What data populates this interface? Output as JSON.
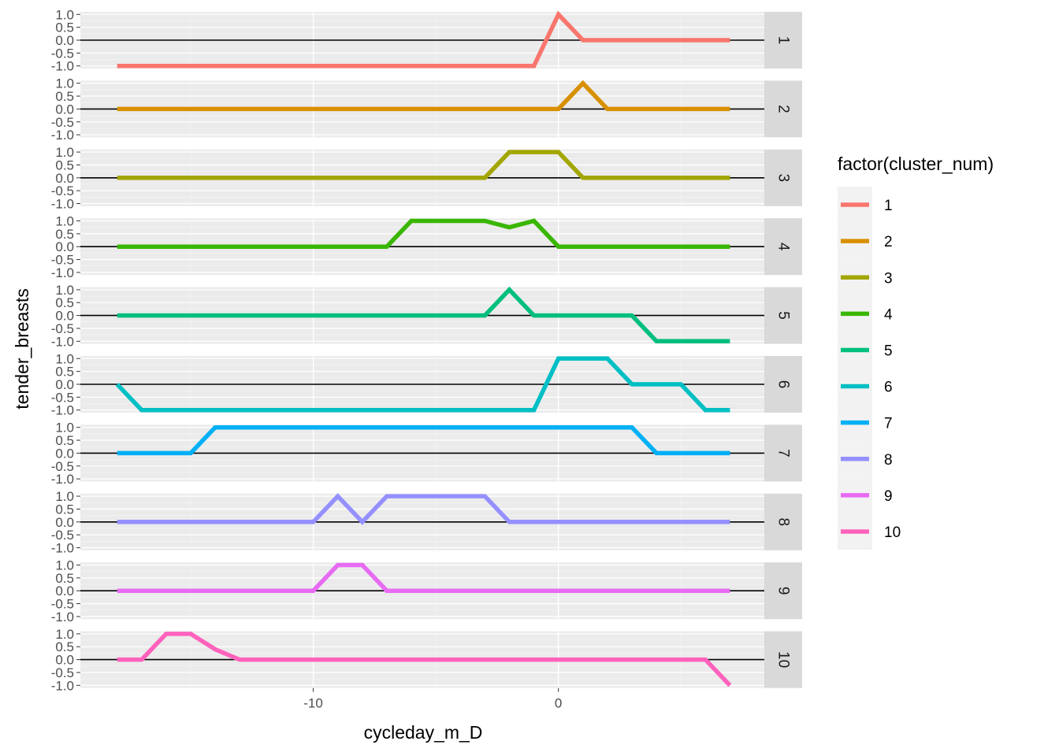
{
  "chart_data": {
    "type": "line",
    "layout": "faceted-rows",
    "xlabel": "cycleday_m_D",
    "ylabel": "tender_breasts",
    "xlim": [
      -19.5,
      8.4
    ],
    "x_ticks": [
      -10,
      0
    ],
    "x_tick_labels": [
      "-10",
      "0"
    ],
    "ylim": [
      -1.1,
      1.1
    ],
    "y_ticks": [
      1.0,
      0.5,
      0.0,
      -0.5,
      -1.0
    ],
    "y_tick_labels": [
      "1.0",
      "0.5",
      "0.0",
      "-0.5",
      "-1.0"
    ],
    "reference_line_y": 0,
    "grid": true,
    "legend": {
      "title": "factor(cluster_num)",
      "position": "right"
    },
    "x": [
      -18,
      -17,
      -16,
      -15,
      -14,
      -13,
      -12,
      -11,
      -10,
      -9,
      -8,
      -7,
      -6,
      -5,
      -4,
      -3,
      -2,
      -1,
      0,
      1,
      2,
      3,
      4,
      5,
      6,
      7
    ],
    "series": [
      {
        "name": "1",
        "color": "#F8766D",
        "values": [
          -1,
          -1,
          -1,
          -1,
          -1,
          -1,
          -1,
          -1,
          -1,
          -1,
          -1,
          -1,
          -1,
          -1,
          -1,
          -1,
          -1,
          -1,
          1,
          0,
          0,
          0,
          0,
          0,
          0,
          0
        ]
      },
      {
        "name": "2",
        "color": "#D89000",
        "values": [
          0,
          0,
          0,
          0,
          0,
          0,
          0,
          0,
          0,
          0,
          0,
          0,
          0,
          0,
          0,
          0,
          0,
          0,
          0,
          1,
          0,
          0,
          0,
          0,
          0,
          0
        ]
      },
      {
        "name": "3",
        "color": "#A3A500",
        "values": [
          0,
          0,
          0,
          0,
          0,
          0,
          0,
          0,
          0,
          0,
          0,
          0,
          0,
          0,
          0,
          0,
          1,
          1,
          1,
          0,
          0,
          0,
          0,
          0,
          0,
          0
        ]
      },
      {
        "name": "4",
        "color": "#39B600",
        "values": [
          0,
          0,
          0,
          0,
          0,
          0,
          0,
          0,
          0,
          0,
          0,
          0,
          1,
          1,
          1,
          1,
          0.75,
          1,
          0,
          0,
          0,
          0,
          0,
          0,
          0,
          0
        ]
      },
      {
        "name": "5",
        "color": "#00BF7D",
        "values": [
          0,
          0,
          0,
          0,
          0,
          0,
          0,
          0,
          0,
          0,
          0,
          0,
          0,
          0,
          0,
          0,
          1,
          0,
          0,
          0,
          0,
          0,
          -1,
          -1,
          -1,
          -1
        ]
      },
      {
        "name": "6",
        "color": "#00BFC4",
        "values": [
          0,
          -1,
          -1,
          -1,
          -1,
          -1,
          -1,
          -1,
          -1,
          -1,
          -1,
          -1,
          -1,
          -1,
          -1,
          -1,
          -1,
          -1,
          1,
          1,
          1,
          0,
          0,
          0,
          -1,
          -1
        ]
      },
      {
        "name": "7",
        "color": "#00B0F6",
        "values": [
          0,
          0,
          0,
          0,
          1,
          1,
          1,
          1,
          1,
          1,
          1,
          1,
          1,
          1,
          1,
          1,
          1,
          1,
          1,
          1,
          1,
          1,
          0,
          0,
          0,
          0
        ]
      },
      {
        "name": "8",
        "color": "#9590FF",
        "values": [
          0,
          0,
          0,
          0,
          0,
          0,
          0,
          0,
          0,
          1,
          0,
          1,
          1,
          1,
          1,
          1,
          0,
          0,
          0,
          0,
          0,
          0,
          0,
          0,
          0,
          0
        ]
      },
      {
        "name": "9",
        "color": "#E76BF3",
        "values": [
          0,
          0,
          0,
          0,
          0,
          0,
          0,
          0,
          0,
          1,
          1,
          0,
          0,
          0,
          0,
          0,
          0,
          0,
          0,
          0,
          0,
          0,
          0,
          0,
          0,
          0
        ]
      },
      {
        "name": "10",
        "color": "#FF62BC",
        "values": [
          0,
          0,
          1,
          1,
          0.4,
          0,
          0,
          0,
          0,
          0,
          0,
          0,
          0,
          0,
          0,
          0,
          0,
          0,
          0,
          0,
          0,
          0,
          0,
          0,
          0,
          -1
        ]
      }
    ]
  }
}
